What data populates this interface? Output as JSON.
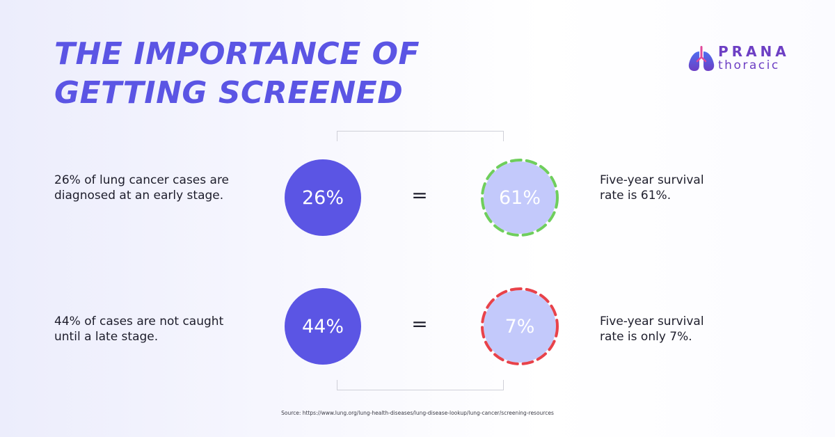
{
  "title": {
    "line1": "THE IMPORTANCE OF",
    "line2": "GETTING SCREENED"
  },
  "logo": {
    "brand": "PRANA",
    "sub": "thoracic",
    "icon": "lungs-icon",
    "colors": {
      "purple": "#6d3fc4",
      "blue": "#4f6ef0",
      "pink": "#e0489a"
    }
  },
  "rows": [
    {
      "description": "26% of lung cancer cases are\ndiagnosed at an early stage.",
      "stat": "26%",
      "equals": "=",
      "survival": "61%",
      "outcome": "Five-year survival\nrate is 61%.",
      "ring_color": "#6fce5c"
    },
    {
      "description": "44% of cases are not caught\nuntil a late stage.",
      "stat": "44%",
      "equals": "=",
      "survival": "7%",
      "outcome": "Five-year survival\nrate is only 7%.",
      "ring_color": "#e8424a"
    }
  ],
  "colors": {
    "accent": "#5b55e4",
    "survival_fill": "#c3c9fb",
    "text": "#1d1d2b"
  },
  "source": "Source: https://www.lung.org/lung-health-diseases/lung-disease-lookup/lung-cancer/screening-resources"
}
